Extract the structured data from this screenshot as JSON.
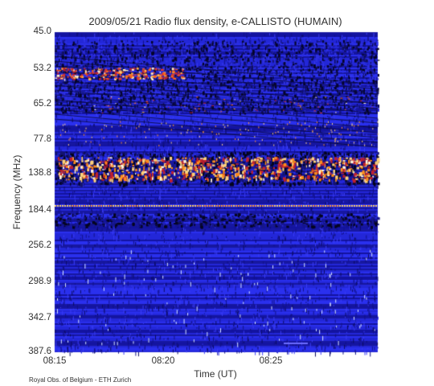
{
  "chart_data": {
    "type": "heatmap",
    "title": "2009/05/21  Radio flux density, e-CALLISTO (HUMAIN)",
    "xlabel": "Time (UT)",
    "ylabel": "Frequency (MHz)",
    "y_ticks": [
      "45.0",
      "53.2",
      "65.2",
      "77.8",
      "138.8",
      "184.4",
      "256.2",
      "298.9",
      "342.7",
      "387.6"
    ],
    "x_ticks": [
      "08:15",
      "08:20",
      "08:25"
    ],
    "x_range": [
      "08:15",
      "08:29:30"
    ],
    "y_range": [
      45.0,
      387.6
    ],
    "y_axis_inverted": true,
    "colormap": [
      "#000033",
      "#1a1aa8",
      "#2f2fe6",
      "#c0202e",
      "#ff8c1a",
      "#fff0c8"
    ],
    "background_color": "#1e22c8",
    "features": [
      {
        "freq_range": [
          "45.0",
          "65.2"
        ],
        "description_shown": "intermittent bright emission near 53.2 MHz"
      },
      {
        "freq_range": [
          "77.8",
          "138.8"
        ],
        "description_shown": "bright interference band near 138.8 MHz"
      },
      {
        "freq_range": [
          "184.4",
          "184.4"
        ],
        "description_shown": "narrowband line near 184.4 MHz"
      }
    ]
  },
  "footer": "Royal Obs. of Belgium - ETH Zurich"
}
